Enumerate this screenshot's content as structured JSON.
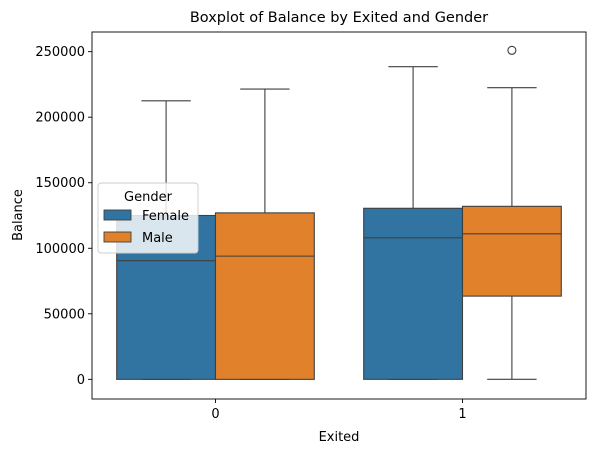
{
  "chart_data": {
    "type": "boxplot",
    "title": "Boxplot of Balance by Exited and Gender",
    "xlabel": "Exited",
    "ylabel": "Balance",
    "categories": [
      "0",
      "1"
    ],
    "ylim": [
      -15000,
      265000
    ],
    "yticks": [
      0,
      50000,
      100000,
      150000,
      200000,
      250000
    ],
    "ytick_labels": [
      "0",
      "50000",
      "100000",
      "150000",
      "200000",
      "250000"
    ],
    "legend": {
      "title": "Gender",
      "position": "center-left"
    },
    "series": [
      {
        "name": "Female",
        "color": "#3274a1",
        "boxes": [
          {
            "min": 0,
            "q1": 0,
            "median": 90500,
            "q3": 125000,
            "max": 212500,
            "outliers": []
          },
          {
            "min": 0,
            "q1": 0,
            "median": 108000,
            "q3": 130500,
            "max": 238500,
            "outliers": []
          }
        ]
      },
      {
        "name": "Male",
        "color": "#e1812c",
        "boxes": [
          {
            "min": 0,
            "q1": 0,
            "median": 94000,
            "q3": 127000,
            "max": 221500,
            "outliers": []
          },
          {
            "min": 0,
            "q1": 63500,
            "median": 111000,
            "q3": 132000,
            "max": 222500,
            "outliers": [
              251000
            ]
          }
        ]
      }
    ]
  }
}
